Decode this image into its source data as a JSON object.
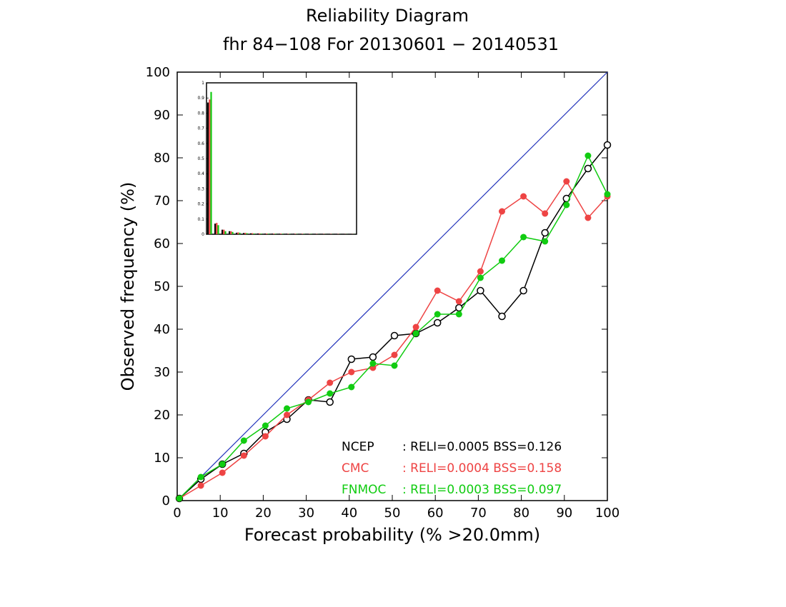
{
  "chart_data": {
    "type": "line",
    "title": "Reliability Diagram",
    "subtitle": "fhr 84−108 For 20130601 − 20140531",
    "xlabel": "Forecast probability (% >20.0mm)",
    "ylabel": "Observed frequency (%)",
    "xlim": [
      0,
      100
    ],
    "ylim": [
      0,
      100
    ],
    "xticks": [
      "0",
      "10",
      "20",
      "30",
      "40",
      "50",
      "60",
      "70",
      "80",
      "90",
      "100"
    ],
    "yticks": [
      "0",
      "10",
      "20",
      "30",
      "40",
      "50",
      "60",
      "70",
      "80",
      "90",
      "100"
    ],
    "diagonal_color": "#2233bb",
    "grid": false,
    "legend_placement": "bottom-right",
    "series": [
      {
        "name": "NCEP",
        "color": "#000000",
        "marker": "open-circle",
        "stats": ":  RELI=0.0005  BSS=0.126",
        "x": [
          0.5,
          5.5,
          10.5,
          15.5,
          20.5,
          25.5,
          30.5,
          35.5,
          40.5,
          45.5,
          50.5,
          55.5,
          60.5,
          65.5,
          70.5,
          75.5,
          80.5,
          85.5,
          90.5,
          95.5,
          100
        ],
        "y": [
          0.5,
          5.0,
          8.5,
          11.0,
          16.0,
          19.0,
          23.5,
          23.0,
          33.0,
          33.5,
          38.5,
          39.0,
          41.5,
          45.0,
          49.0,
          43.0,
          49.0,
          62.5,
          70.5,
          77.5,
          83.0
        ]
      },
      {
        "name": "CMC",
        "color": "#ee4444",
        "marker": "filled-circle",
        "stats": ":  RELI=0.0004  BSS=0.158",
        "x": [
          0.5,
          5.5,
          10.5,
          15.5,
          20.5,
          25.5,
          30.5,
          35.5,
          40.5,
          45.5,
          50.5,
          55.5,
          60.5,
          65.5,
          70.5,
          75.5,
          80.5,
          85.5,
          90.5,
          95.5,
          100
        ],
        "y": [
          0.5,
          3.5,
          6.5,
          10.5,
          15.0,
          20.0,
          23.5,
          27.5,
          30.0,
          31.0,
          34.0,
          40.5,
          49.0,
          46.5,
          53.5,
          67.5,
          71.0,
          67.0,
          74.5,
          66.0,
          71.0
        ]
      },
      {
        "name": "FNMOC",
        "color": "#11cc11",
        "marker": "filled-circle",
        "stats": ":  RELI=0.0003  BSS=0.097",
        "x": [
          0.5,
          5.5,
          10.5,
          15.5,
          20.5,
          25.5,
          30.5,
          35.5,
          40.5,
          45.5,
          50.5,
          55.5,
          60.5,
          65.5,
          70.5,
          75.5,
          80.5,
          85.5,
          90.5,
          95.5,
          100
        ],
        "y": [
          0.5,
          5.5,
          8.5,
          14.0,
          17.5,
          21.5,
          23.0,
          25.0,
          26.5,
          32.0,
          31.5,
          39.0,
          43.5,
          43.5,
          52.0,
          56.0,
          61.5,
          60.5,
          69.0,
          80.5,
          71.5
        ]
      }
    ],
    "inset": {
      "type": "bar",
      "description_ticks": [
        "0",
        "0.1",
        "0.2",
        "0.3",
        "0.4",
        "0.5",
        "0.6",
        "0.7",
        "0.8",
        "0.9",
        "1"
      ],
      "ylim": [
        0,
        1
      ],
      "bins": 21,
      "series_values": {
        "NCEP": [
          0.87,
          0.07,
          0.03,
          0.02,
          0.01,
          0.008,
          0.006,
          0.005,
          0.004,
          0.004,
          0.003,
          0.003,
          0.003,
          0.002,
          0.002,
          0.002,
          0.002,
          0.002,
          0.001,
          0.001,
          0.001
        ],
        "CMC": [
          0.89,
          0.075,
          0.03,
          0.02,
          0.012,
          0.009,
          0.007,
          0.006,
          0.005,
          0.004,
          0.004,
          0.003,
          0.003,
          0.003,
          0.002,
          0.002,
          0.002,
          0.002,
          0.002,
          0.001,
          0.001
        ],
        "FNMOC": [
          0.94,
          0.06,
          0.02,
          0.015,
          0.01,
          0.007,
          0.005,
          0.004,
          0.004,
          0.003,
          0.003,
          0.002,
          0.002,
          0.002,
          0.002,
          0.001,
          0.001,
          0.001,
          0.001,
          0.001,
          0.001
        ]
      }
    }
  }
}
